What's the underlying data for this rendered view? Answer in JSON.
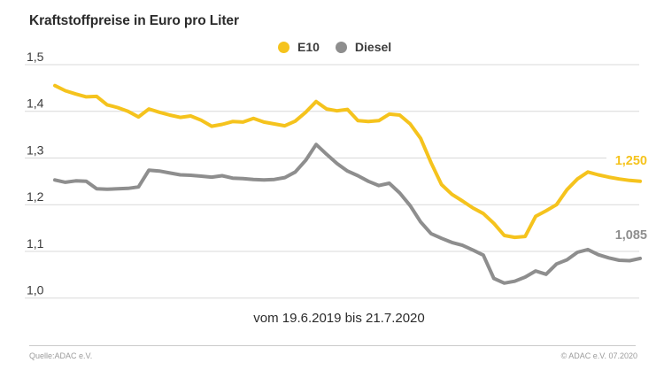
{
  "footer": {
    "source": "Quelle:ADAC e.V.",
    "copyright": "© ADAC e.V. 07.2020"
  },
  "colors": {
    "e10": "#F5C31D",
    "diesel": "#8E8E8E",
    "gridline": "#D9D9D9",
    "text_dark": "#2B2B2B",
    "axis_text": "#3A3A3A",
    "footer_text": "#9B9B9B"
  },
  "chart_data": {
    "type": "line",
    "title": "Kraftstoffpreise in Euro pro Liter",
    "x_range_label": "vom 19.6.2019 bis 21.7.2020",
    "ylabel": "Euro pro Liter",
    "ylim": [
      1.0,
      1.5
    ],
    "y_ticks": [
      1.0,
      1.1,
      1.2,
      1.3,
      1.4,
      1.5
    ],
    "y_tick_labels": [
      "1,0",
      "1,1",
      "1,2",
      "1,3",
      "1,4",
      "1,5"
    ],
    "grid": "horizontal",
    "legend_position": "top-center",
    "x_start": "19.6.2019",
    "x_end": "21.7.2020",
    "series": [
      {
        "name": "E10",
        "color": "#F5C31D",
        "end_label": "1,250",
        "end_value": 1.25,
        "values": [
          1.455,
          1.444,
          1.437,
          1.431,
          1.432,
          1.414,
          1.408,
          1.4,
          1.388,
          1.405,
          1.398,
          1.392,
          1.387,
          1.39,
          1.381,
          1.368,
          1.372,
          1.378,
          1.377,
          1.385,
          1.377,
          1.373,
          1.369,
          1.379,
          1.398,
          1.421,
          1.405,
          1.401,
          1.404,
          1.38,
          1.378,
          1.38,
          1.394,
          1.392,
          1.373,
          1.342,
          1.29,
          1.243,
          1.222,
          1.208,
          1.193,
          1.181,
          1.16,
          1.134,
          1.13,
          1.132,
          1.175,
          1.187,
          1.2,
          1.232,
          1.255,
          1.27,
          1.264,
          1.259,
          1.255,
          1.252,
          1.25
        ]
      },
      {
        "name": "Diesel",
        "color": "#8E8E8E",
        "end_label": "1,085",
        "end_value": 1.085,
        "values": [
          1.253,
          1.248,
          1.251,
          1.25,
          1.234,
          1.233,
          1.234,
          1.235,
          1.238,
          1.274,
          1.272,
          1.268,
          1.264,
          1.263,
          1.261,
          1.259,
          1.262,
          1.257,
          1.256,
          1.254,
          1.253,
          1.254,
          1.258,
          1.27,
          1.295,
          1.329,
          1.308,
          1.288,
          1.272,
          1.262,
          1.25,
          1.241,
          1.246,
          1.225,
          1.198,
          1.163,
          1.138,
          1.128,
          1.119,
          1.113,
          1.103,
          1.092,
          1.042,
          1.032,
          1.036,
          1.045,
          1.058,
          1.051,
          1.073,
          1.082,
          1.098,
          1.104,
          1.093,
          1.086,
          1.081,
          1.08,
          1.085
        ]
      }
    ]
  }
}
